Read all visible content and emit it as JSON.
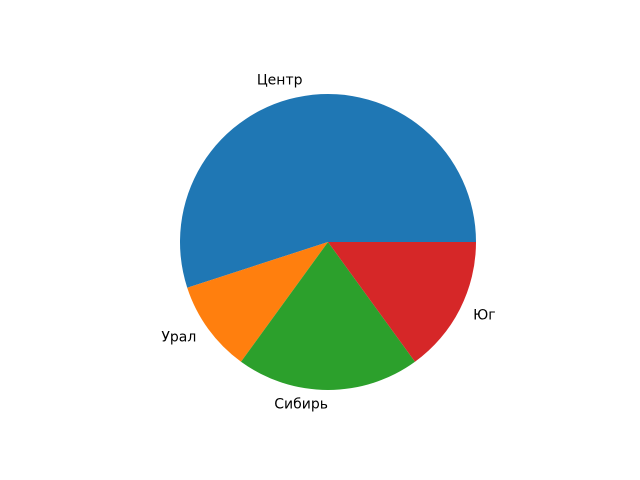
{
  "figure": {
    "background_color": "#ffffff"
  },
  "chart_data": {
    "type": "pie",
    "labels": [
      "Центр",
      "Урал",
      "Сибирь",
      "Юг"
    ],
    "values": [
      55,
      10,
      20,
      15
    ],
    "colors": [
      "#1f77b4",
      "#ff7f0e",
      "#2ca02c",
      "#d62728"
    ],
    "start_angle": 0,
    "direction": "counterclockwise",
    "label_distance": 1.1,
    "legend": false
  }
}
